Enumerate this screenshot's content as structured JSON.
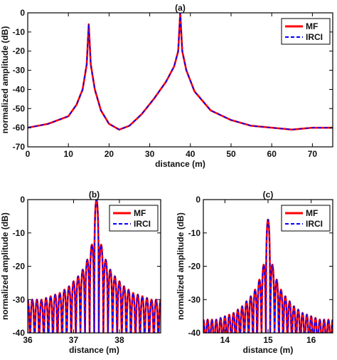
{
  "chart_data": [
    {
      "type": "line",
      "panel": "(a)",
      "title": "(a)",
      "xlabel": "distance (m)",
      "ylabel": "normalized amplitude (dB)",
      "xlim": [
        0,
        75
      ],
      "ylim": [
        -70,
        0
      ],
      "xticks": [
        0,
        10,
        20,
        30,
        40,
        50,
        60,
        70
      ],
      "yticks": [
        0,
        -10,
        -20,
        -30,
        -40,
        -50,
        -60,
        -70
      ],
      "legend_position": "top-right",
      "x": [
        0,
        5,
        10,
        12,
        13.5,
        14.5,
        15,
        15.5,
        16.5,
        18,
        20,
        22.5,
        25,
        28,
        31,
        34,
        36,
        37,
        37.5,
        38,
        39,
        41,
        45,
        50,
        55,
        60,
        65,
        70,
        75
      ],
      "series": [
        {
          "name": "MF",
          "color": "#ff0000",
          "style": "solid",
          "values": [
            -60,
            -58,
            -54,
            -48,
            -40,
            -27,
            -6,
            -27,
            -40,
            -51,
            -58,
            -61,
            -59,
            -53,
            -45,
            -36,
            -28,
            -20,
            0,
            -20,
            -30,
            -41,
            -51,
            -56,
            -59,
            -60,
            -61,
            -60,
            -60
          ]
        },
        {
          "name": "IRCI",
          "color": "#0000ff",
          "style": "dashed",
          "values": [
            -60,
            -58,
            -54,
            -48,
            -40,
            -27,
            -6,
            -27,
            -40,
            -51,
            -58,
            -61,
            -59,
            -53,
            -45,
            -36,
            -28,
            -20,
            0,
            -20,
            -30,
            -41,
            -51,
            -56,
            -59,
            -60,
            -61,
            -60,
            -60
          ]
        }
      ]
    },
    {
      "type": "line",
      "panel": "(b)",
      "title": "(b)",
      "xlabel": "distance (m)",
      "ylabel": "normalized amplitude (dB)",
      "xlim": [
        36,
        38.9
      ],
      "ylim": [
        -40,
        0
      ],
      "xticks": [
        36,
        37,
        38
      ],
      "yticks": [
        0,
        -10,
        -20,
        -30,
        -40
      ],
      "legend_position": "top-right",
      "peak_x": 37.5,
      "lobe_spacing": 0.1,
      "lobe_peaks_db": [
        -30,
        -29.5,
        -29,
        -28.5,
        -28,
        -27,
        -26,
        -24.5,
        -23,
        -21,
        -18,
        -13.5,
        0,
        -13.5,
        -18,
        -21,
        -23,
        -24.5,
        -26,
        -27,
        -28,
        -28.5,
        -29,
        -29.5,
        -30
      ],
      "series": [
        {
          "name": "MF",
          "color": "#ff0000",
          "style": "solid"
        },
        {
          "name": "IRCI",
          "color": "#0000ff",
          "style": "dashed"
        }
      ]
    },
    {
      "type": "line",
      "panel": "(c)",
      "title": "(c)",
      "xlabel": "distance (m)",
      "ylabel": "normalized amplitude (dB)",
      "xlim": [
        13.5,
        16.5
      ],
      "ylim": [
        -40,
        0
      ],
      "xticks": [
        14,
        15,
        16
      ],
      "yticks": [
        0,
        -10,
        -20,
        -30,
        -40
      ],
      "legend_position": "top-right",
      "peak_x": 15,
      "lobe_spacing": 0.1,
      "lobe_peaks_db": [
        -36,
        -35.5,
        -35,
        -34.5,
        -34,
        -33,
        -32,
        -30.5,
        -29,
        -27,
        -24,
        -19.5,
        -6,
        -19.5,
        -24,
        -27,
        -29,
        -30.5,
        -32,
        -33,
        -34,
        -34.5,
        -35,
        -35.5,
        -36
      ],
      "series": [
        {
          "name": "MF",
          "color": "#ff0000",
          "style": "solid"
        },
        {
          "name": "IRCI",
          "color": "#0000ff",
          "style": "dashed"
        }
      ]
    }
  ]
}
